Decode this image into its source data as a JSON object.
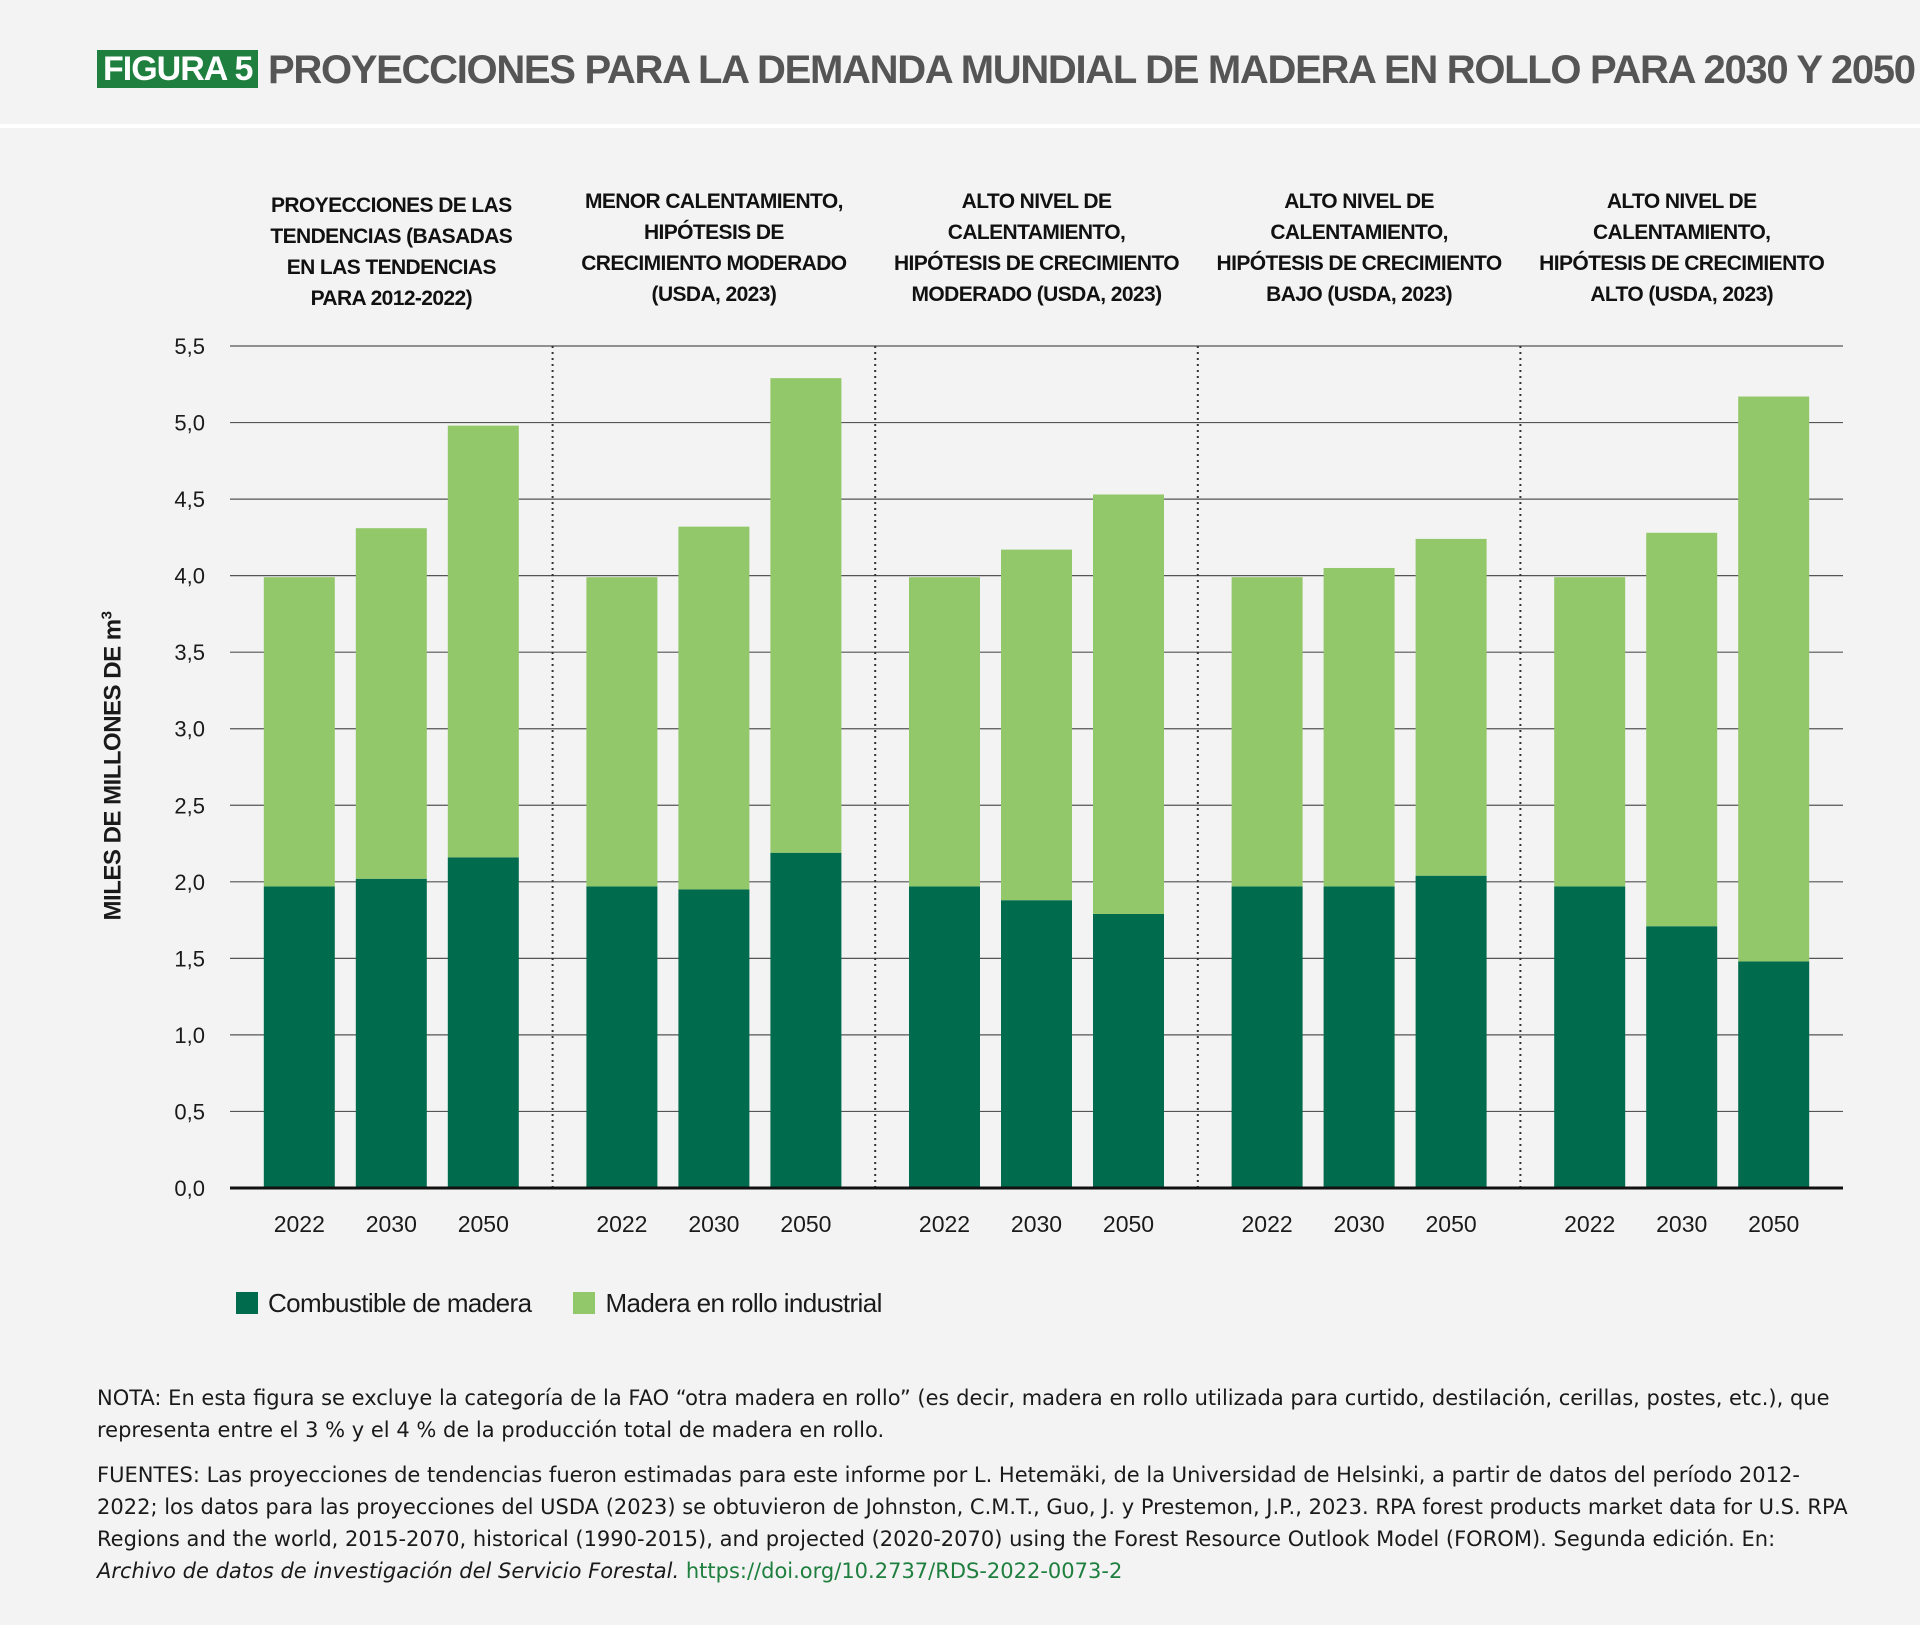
{
  "header": {
    "figure_label": "FIGURA 5",
    "title": "PROYECCIONES PARA LA DEMANDA MUNDIAL DE MADERA EN ROLLO PARA 2030 Y 2050"
  },
  "colors": {
    "fuelwood": "#006c4d",
    "industrial": "#92c86a",
    "figure_label_bg": "#1e7f3f",
    "background": "#f3f3f3"
  },
  "chart_data": {
    "type": "bar",
    "stacked": true,
    "ylabel": "MILES DE MILLONES DE m",
    "ylabel_superscript": "3",
    "ylim": [
      0,
      5.5
    ],
    "yticks": [
      "0,0",
      "0,5",
      "1,0",
      "1,5",
      "2,0",
      "2,5",
      "3,0",
      "3,5",
      "4,0",
      "4,5",
      "5,0",
      "5,5"
    ],
    "grid": true,
    "legend_position": "bottom-left",
    "series": [
      {
        "name": "Combustible de madera",
        "color": "#006c4d"
      },
      {
        "name": "Madera en rollo industrial",
        "color": "#92c86a"
      }
    ],
    "groups": [
      {
        "title": [
          "PROYECCIONES DE LAS",
          "TENDENCIAS (BASADAS",
          "EN LAS TENDENCIAS",
          "PARA 2012-2022)"
        ],
        "categories": [
          "2022",
          "2030",
          "2050"
        ],
        "fuelwood": [
          1.97,
          2.02,
          2.16
        ],
        "industrial": [
          2.02,
          2.29,
          2.82
        ]
      },
      {
        "title": [
          "MENOR CALENTAMIENTO,",
          "HIPÓTESIS DE",
          "CRECIMIENTO MODERADO",
          "(USDA, 2023)"
        ],
        "categories": [
          "2022",
          "2030",
          "2050"
        ],
        "fuelwood": [
          1.97,
          1.95,
          2.19
        ],
        "industrial": [
          2.02,
          2.37,
          3.1
        ]
      },
      {
        "title": [
          "ALTO NIVEL DE",
          "CALENTAMIENTO,",
          "HIPÓTESIS DE CRECIMIENTO",
          "MODERADO (USDA, 2023)"
        ],
        "categories": [
          "2022",
          "2030",
          "2050"
        ],
        "fuelwood": [
          1.97,
          1.88,
          1.79
        ],
        "industrial": [
          2.02,
          2.29,
          2.74
        ]
      },
      {
        "title": [
          "ALTO NIVEL DE",
          "CALENTAMIENTO,",
          "HIPÓTESIS DE CRECIMIENTO",
          "BAJO (USDA, 2023)"
        ],
        "categories": [
          "2022",
          "2030",
          "2050"
        ],
        "fuelwood": [
          1.97,
          1.97,
          2.04
        ],
        "industrial": [
          2.02,
          2.08,
          2.2
        ]
      },
      {
        "title": [
          "ALTO NIVEL DE",
          "CALENTAMIENTO,",
          "HIPÓTESIS DE CRECIMIENTO",
          "ALTO (USDA, 2023)"
        ],
        "categories": [
          "2022",
          "2030",
          "2050"
        ],
        "fuelwood": [
          1.97,
          1.71,
          1.48
        ],
        "industrial": [
          2.02,
          2.57,
          3.69
        ]
      }
    ]
  },
  "notes": {
    "nota": "NOTA: En esta figura se excluye la categoría de la FAO “otra madera en rollo” (es decir, madera en rollo utilizada para curtido, destilación, cerillas, postes, etc.), que representa entre el 3 % y el 4 % de la producción total de madera en rollo.",
    "fuentes_main": "FUENTES: Las proyecciones de tendencias fueron estimadas para este informe por L. Hetemäki, de la Universidad de Helsinki, a partir de datos del período 2012-2022; los datos para las proyecciones del USDA (2023) se obtuvieron de Johnston, C.M.T., Guo, J. y Prestemon, J.P., 2023. RPA forest products market data for U.S. RPA Regions and the world, 2015-2070, historical (1990-2015), and projected (2020-2070) using the Forest Resource Outlook Model (FOROM). Segunda edición. En: ",
    "fuentes_italic": "Archivo de datos de investigación del Servicio Forestal.",
    "fuentes_link": "https://doi.org/10.2737/RDS-2022-0073-2"
  }
}
